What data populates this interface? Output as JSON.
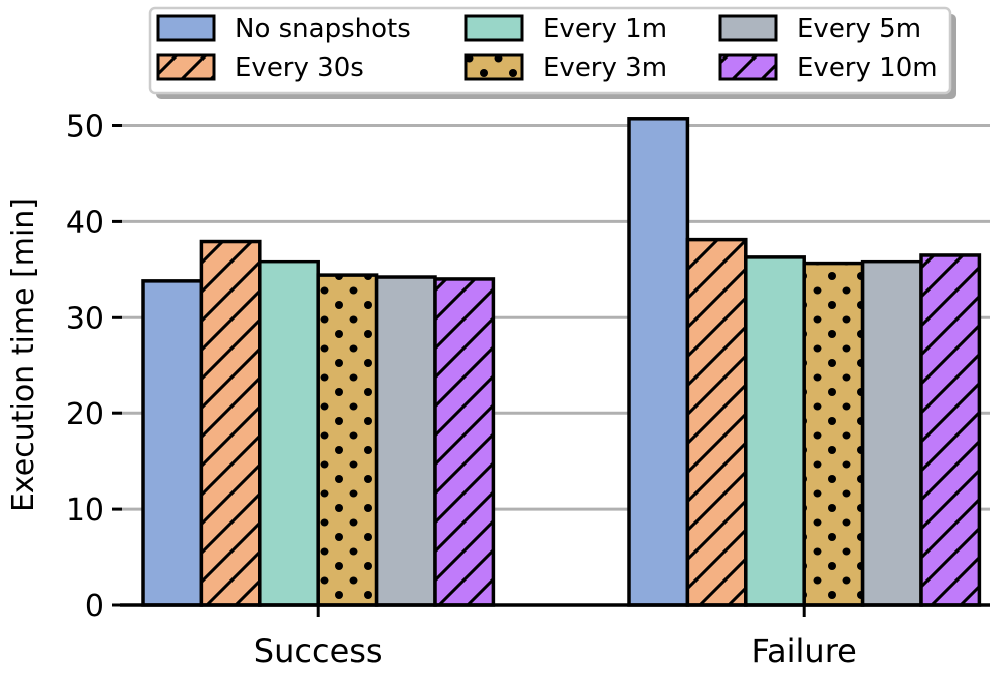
{
  "chart_data": {
    "type": "bar",
    "title": "",
    "xlabel": "",
    "ylabel": "Execution time [min]",
    "ylim": [
      0,
      50
    ],
    "yticks": [
      0,
      10,
      20,
      30,
      40,
      50
    ],
    "grid": "y",
    "legend_position": "top",
    "categories": [
      "Success",
      "Failure"
    ],
    "series": [
      {
        "name": "No snapshots",
        "values": [
          33.8,
          50.7
        ],
        "color": "#8eaadb",
        "pattern": "none"
      },
      {
        "name": "Every 30s",
        "values": [
          37.9,
          38.1
        ],
        "color": "#f4b183",
        "pattern": "hatch"
      },
      {
        "name": "Every 1m",
        "values": [
          35.8,
          36.3
        ],
        "color": "#99d6c8",
        "pattern": "none"
      },
      {
        "name": "Every 3m",
        "values": [
          34.4,
          35.6
        ],
        "color": "#d9b365",
        "pattern": "dots"
      },
      {
        "name": "Every 5m",
        "values": [
          34.2,
          35.8
        ],
        "color": "#adb5bf",
        "pattern": "none"
      },
      {
        "name": "Every 10m",
        "values": [
          34.0,
          36.5
        ],
        "color": "#c07bfa",
        "pattern": "hatch"
      }
    ]
  }
}
